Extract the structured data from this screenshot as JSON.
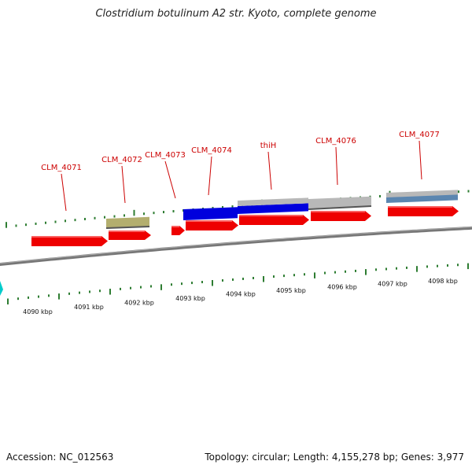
{
  "title": "Clostridium botulinum A2 str. Kyoto, complete genome",
  "footer": {
    "accession": "Accession: NC_012563",
    "summary": "Topology: circular; Length: 4,155,278 bp; Genes: 3,977"
  },
  "colors": {
    "backbone": "#777777",
    "tick": "#2e7d32",
    "label": "#cc0000",
    "cds": "#ee0000",
    "gene_blue": "#0000dd",
    "gene_grey": "#b8b8b8",
    "gene_olive": "#b3ae6e",
    "gene_steel": "#5b86b0",
    "offscreen_marker": "#00cccc"
  },
  "genes": [
    {
      "name": "CLM_4071"
    },
    {
      "name": "CLM_4072"
    },
    {
      "name": "CLM_4073"
    },
    {
      "name": "CLM_4074"
    },
    {
      "name": "thiH"
    },
    {
      "name": "CLM_4076"
    },
    {
      "name": "CLM_4077"
    }
  ],
  "kbp_labels": [
    "4090 kbp",
    "4091 kbp",
    "4092 kbp",
    "4093 kbp",
    "4094 kbp",
    "4095 kbp",
    "4096 kbp",
    "4097 kbp",
    "4098 kbp"
  ]
}
